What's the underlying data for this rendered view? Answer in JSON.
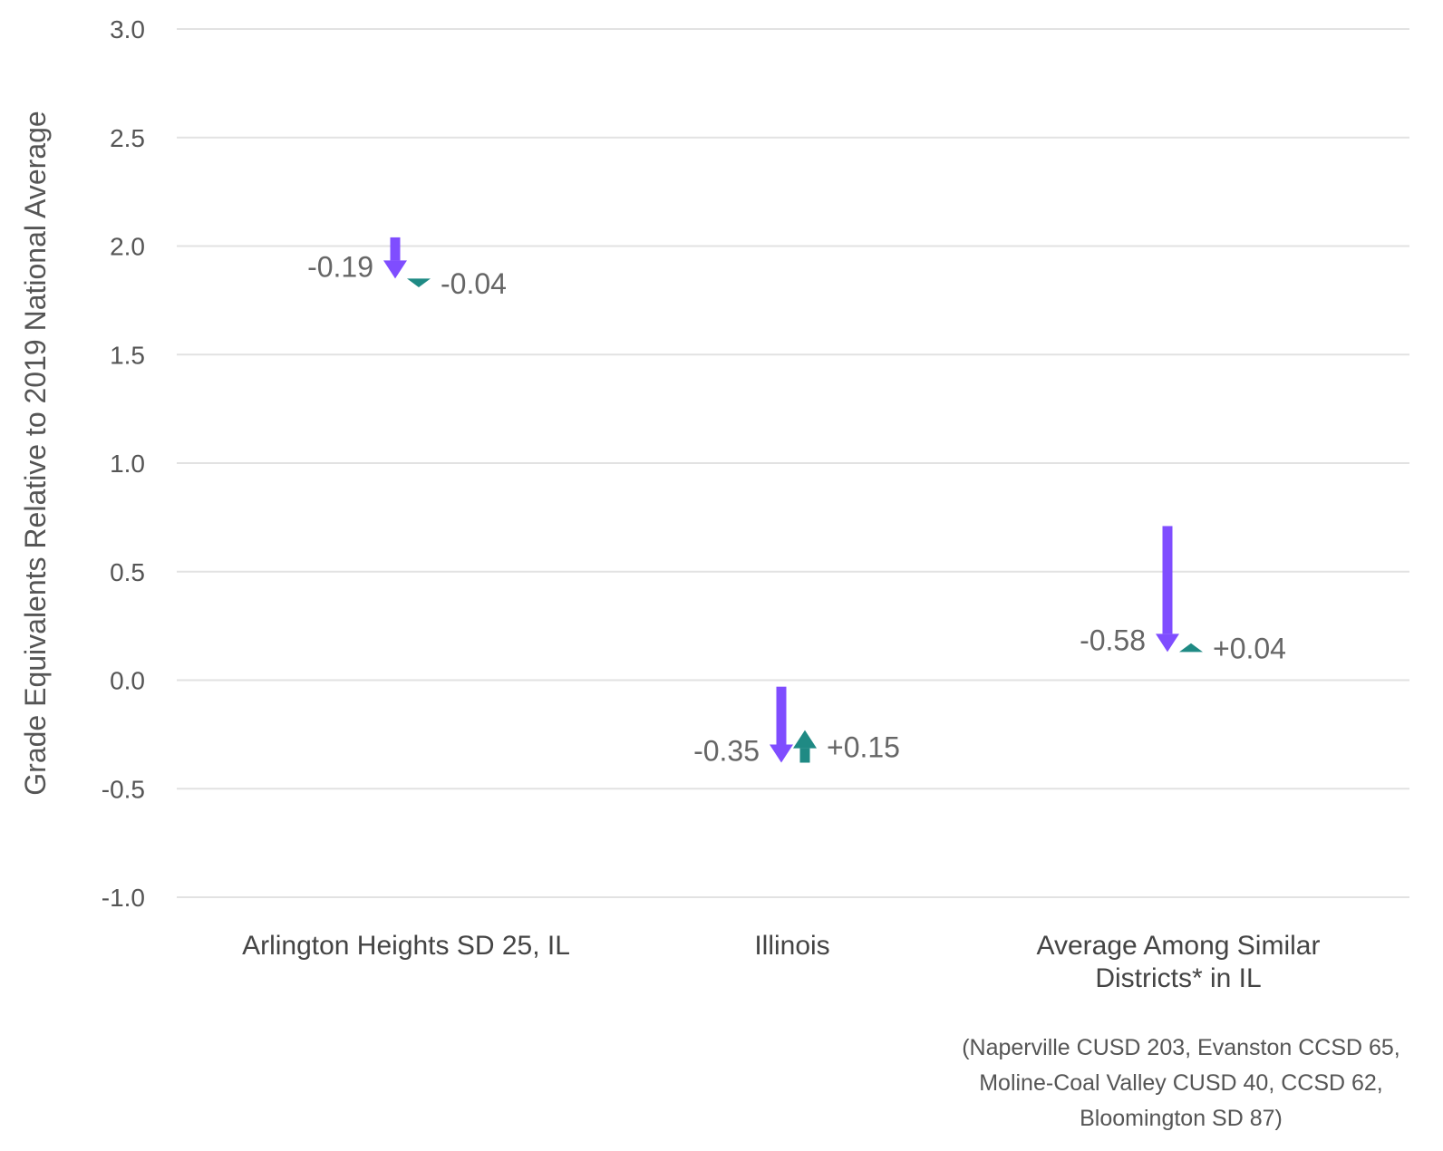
{
  "chart_data": {
    "type": "arrow-change",
    "title": "",
    "ylabel": "Grade Equivalents Relative to 2019 National Average",
    "ylim": [
      -1.0,
      3.0
    ],
    "yticks": [
      3.0,
      2.5,
      2.0,
      1.5,
      1.0,
      0.5,
      0.0,
      -0.5,
      -1.0
    ],
    "ytick_labels": [
      "3.0",
      "2.5",
      "2.0",
      "1.5",
      "1.0",
      "0.5",
      "0.0",
      "-0.5",
      "-1.0"
    ],
    "categories": [
      {
        "label_lines": [
          "Arlington Heights SD 25, IL"
        ]
      },
      {
        "label_lines": [
          "Illinois"
        ]
      },
      {
        "label_lines": [
          "Average Among Similar",
          "Districts* in IL"
        ]
      }
    ],
    "footnote_lines": [
      "(Naperville CUSD 203, Evanston CCSD 65,",
      "Moline-Coal Valley CUSD 40, CCSD 62,",
      "Bloomington SD 87)"
    ],
    "colors": {
      "first_change": "#7f4dff",
      "second_change": "#1f8a84"
    },
    "series": [
      {
        "values": [
          {
            "start": 2.04,
            "change": -0.19,
            "label": "-0.19"
          },
          {
            "start": -0.03,
            "change": -0.35,
            "label": "-0.35"
          },
          {
            "start": 0.71,
            "change": -0.58,
            "label": "-0.58"
          }
        ]
      },
      {
        "values": [
          {
            "start": 1.85,
            "change": -0.04,
            "label": "-0.04"
          },
          {
            "start": -0.38,
            "change": 0.15,
            "label": "+0.15"
          },
          {
            "start": 0.13,
            "change": 0.04,
            "label": "+0.04"
          }
        ]
      }
    ]
  }
}
